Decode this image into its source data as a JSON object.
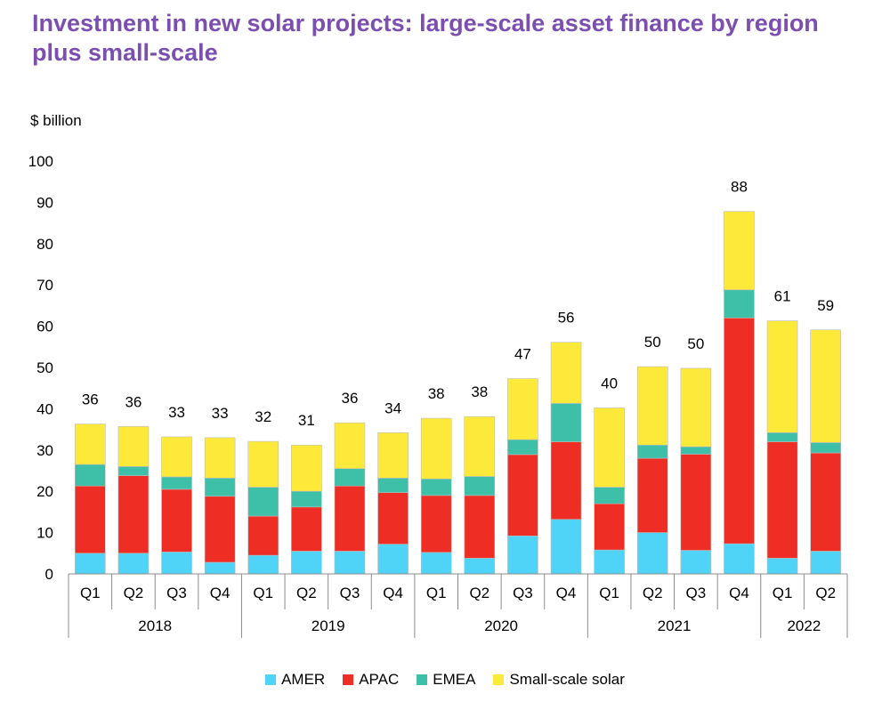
{
  "title": "Investment in new solar projects: large-scale asset finance by region plus small-scale",
  "chart_data": {
    "type": "bar",
    "stacked": true,
    "ylabel": "$ billion",
    "ylim": [
      0,
      100
    ],
    "yticks": [
      0,
      10,
      20,
      30,
      40,
      50,
      60,
      70,
      80,
      90,
      100
    ],
    "categories": [
      "Q1",
      "Q2",
      "Q3",
      "Q4",
      "Q1",
      "Q2",
      "Q3",
      "Q4",
      "Q1",
      "Q2",
      "Q3",
      "Q4",
      "Q1",
      "Q2",
      "Q3",
      "Q4",
      "Q1",
      "Q2"
    ],
    "year_groups": [
      {
        "label": "2018",
        "count": 4
      },
      {
        "label": "2019",
        "count": 4
      },
      {
        "label": "2020",
        "count": 4
      },
      {
        "label": "2021",
        "count": 4
      },
      {
        "label": "2022",
        "count": 2
      }
    ],
    "series": [
      {
        "name": "AMER",
        "color": "#4fd3f7",
        "values": [
          5,
          5,
          5.3,
          2.8,
          4.5,
          5.5,
          5.5,
          7.2,
          5.2,
          3.8,
          9.2,
          13.2,
          5.8,
          10,
          5.7,
          7.3,
          3.8,
          5.5
        ]
      },
      {
        "name": "APAC",
        "color": "#ee2e24",
        "values": [
          16.3,
          18.8,
          15.2,
          16,
          9.5,
          10.7,
          15.8,
          12.5,
          13.8,
          15.2,
          19.7,
          18.8,
          11.2,
          18,
          23.3,
          54.7,
          28.2,
          23.8
        ]
      },
      {
        "name": "EMEA",
        "color": "#3ebfa8",
        "values": [
          5.2,
          2.2,
          3.0,
          4.4,
          7,
          3.8,
          4.2,
          3.5,
          4,
          4.6,
          3.6,
          9.3,
          4,
          3.2,
          1.8,
          6.8,
          2.2,
          2.5
        ]
      },
      {
        "name": "Small-scale solar",
        "color": "#fde93a",
        "values": [
          9.8,
          9.7,
          9.7,
          9.8,
          11.1,
          11.2,
          11.1,
          11,
          14.7,
          14.5,
          14.8,
          14.8,
          19.2,
          19,
          19,
          19,
          27.1,
          27.3
        ]
      }
    ],
    "totals": [
      "36",
      "36",
      "33",
      "33",
      "32",
      "31",
      "36",
      "34",
      "38",
      "38",
      "47",
      "56",
      "40",
      "50",
      "50",
      "88",
      "61",
      "59"
    ],
    "legend_position": "bottom",
    "grid": false
  }
}
